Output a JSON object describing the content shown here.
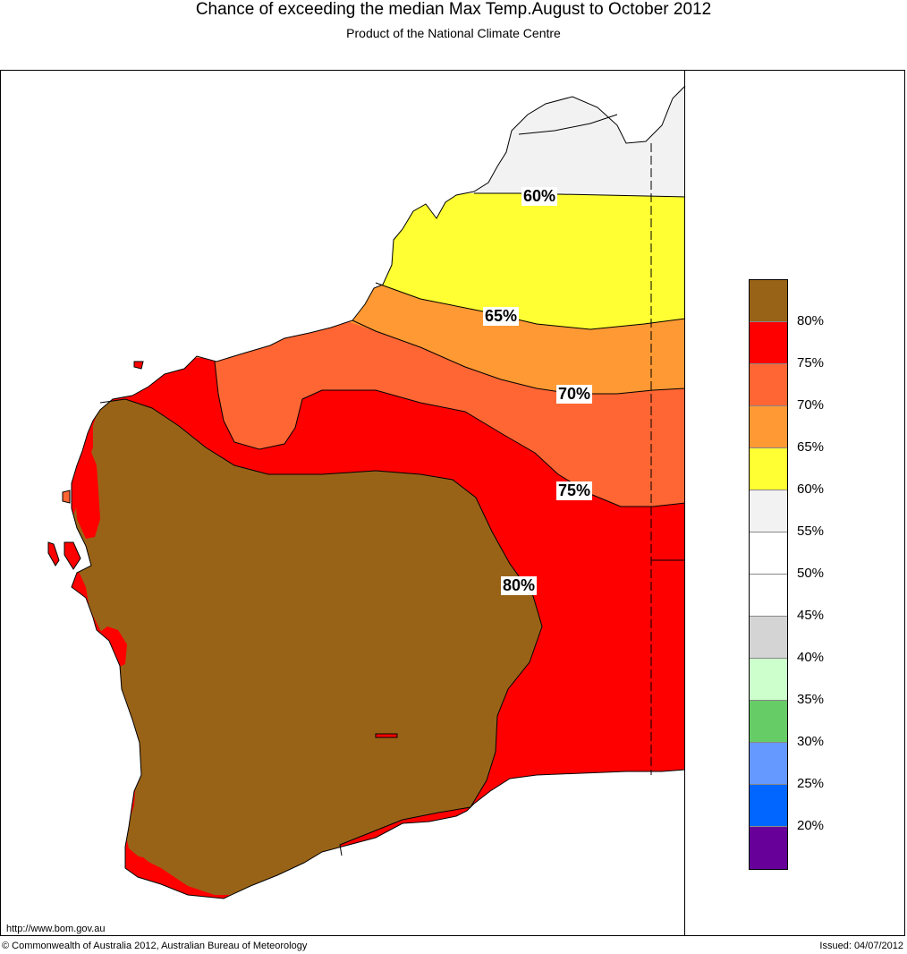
{
  "title": "Chance of exceeding the median Max Temp.August to October 2012",
  "subtitle": "Product of the National Climate Centre",
  "contour_labels": [
    "60%",
    "65%",
    "70%",
    "75%",
    "80%"
  ],
  "legend": {
    "colors": [
      "#996317",
      "#ff0000",
      "#ff6633",
      "#ff9933",
      "#ffff33",
      "#f2f2f2",
      "#ffffff",
      "#ffffff",
      "#d4d4d4",
      "#ccffcc",
      "#66cc66",
      "#6699ff",
      "#0066ff",
      "#660099"
    ],
    "labels": [
      "80%",
      "75%",
      "70%",
      "65%",
      "60%",
      "55%",
      "50%",
      "45%",
      "40%",
      "35%",
      "30%",
      "25%",
      "20%"
    ]
  },
  "footer": {
    "url": "http://www.bom.gov.au",
    "copyright": "© Commonwealth of Australia 2012, Australian Bureau of Meteorology",
    "issued": "Issued: 04/07/2012"
  },
  "colors": {
    "brown": "#996317",
    "red": "#ff0000",
    "orange_red": "#ff6633",
    "orange": "#ff9933",
    "yellow": "#ffff33",
    "light_grey": "#f2f2f2"
  }
}
